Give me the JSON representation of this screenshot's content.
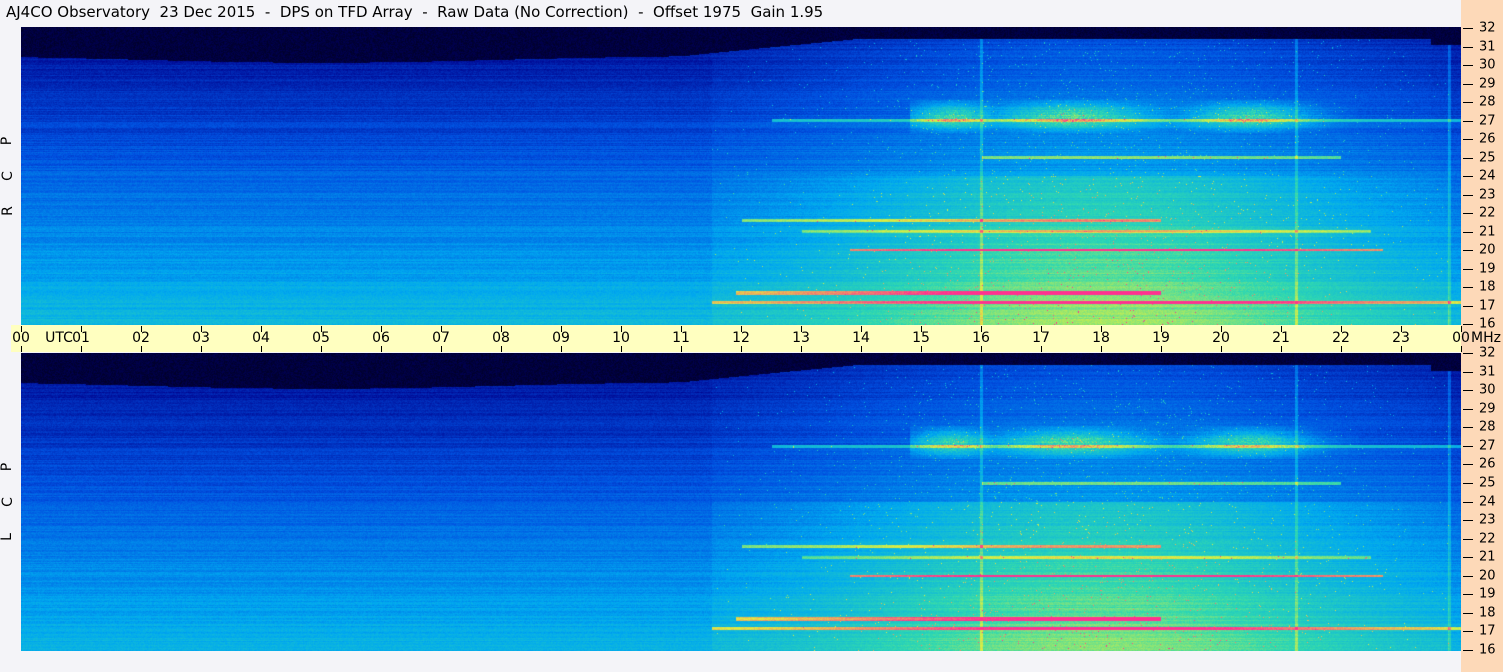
{
  "title": "AJ4CO Observatory  23 Dec 2015  -  DPS on TFD Array  -  Raw Data (No Correction)  -  Offset 1975  Gain 1.95",
  "chart_data": {
    "type": "heatmap",
    "title": "AJ4CO Observatory  23 Dec 2015  -  DPS on TFD Array  -  Raw Data (No Correction)  -  Offset 1975  Gain 1.95",
    "x_axis": {
      "unit_label": "UTC",
      "range_hours": [
        0,
        24
      ],
      "tick_labels": [
        "00",
        "01",
        "02",
        "03",
        "04",
        "05",
        "06",
        "07",
        "08",
        "09",
        "10",
        "11",
        "12",
        "13",
        "14",
        "15",
        "16",
        "17",
        "18",
        "19",
        "20",
        "21",
        "22",
        "23",
        "00"
      ]
    },
    "y_axis": {
      "unit_label": "MHz",
      "range": [
        16,
        32
      ],
      "tick_labels": [
        "32",
        "31",
        "30",
        "29",
        "28",
        "27",
        "26",
        "25",
        "24",
        "23",
        "22",
        "21",
        "20",
        "19",
        "18",
        "17",
        "16"
      ]
    },
    "panels": [
      {
        "polarization_label": [
          "R",
          "C",
          "P"
        ]
      },
      {
        "polarization_label": [
          "L",
          "C",
          "P"
        ]
      }
    ],
    "colormap": [
      "#000000",
      "#00008a",
      "#0050e0",
      "#00a8f0",
      "#30d8b0",
      "#e0f040",
      "#ff3090"
    ],
    "grid": false,
    "features": {
      "black_region_above_mhz_night": 30.5,
      "daytime_activity_utc": [
        12,
        23.5
      ],
      "band_27mhz_activity_utc": [
        14.8,
        22.3
      ],
      "vertical_interference_utc": [
        16.0,
        21.25,
        23.8
      ],
      "horizontal_lines_mhz": [
        27,
        25,
        21.6,
        21,
        20,
        17.7,
        17.2
      ]
    }
  }
}
